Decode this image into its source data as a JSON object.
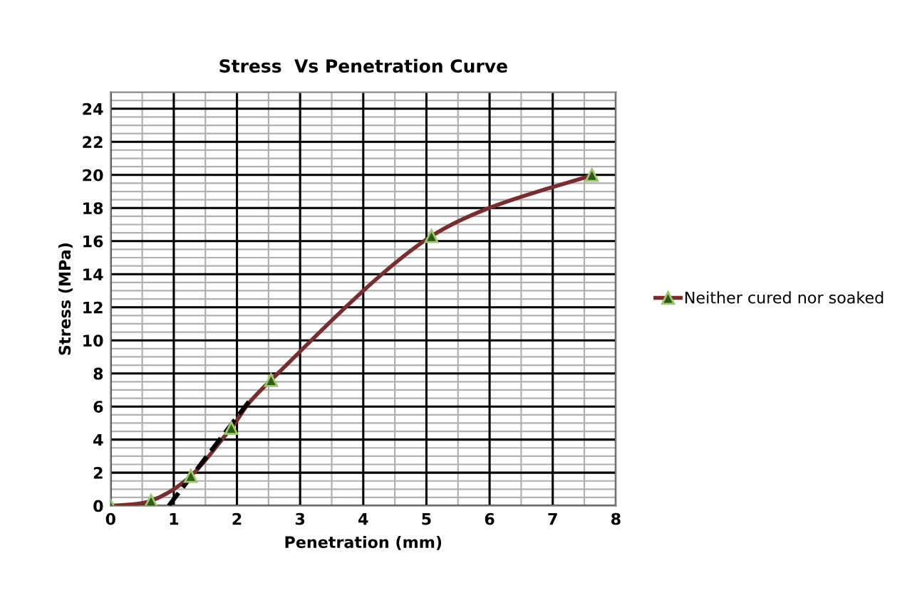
{
  "chart_data": {
    "type": "line",
    "title": "Stress  Vs Penetration Curve",
    "xlabel": "Penetration (mm)",
    "ylabel": "Stress (MPa)",
    "series": [
      {
        "name": "Neither cured nor soaked",
        "color": "#7b2c2c",
        "x": [
          0,
          0.64,
          1.27,
          1.91,
          2.54,
          5.08,
          7.62
        ],
        "values": [
          0,
          0.3,
          1.8,
          4.7,
          7.6,
          16.3,
          20
        ],
        "marker": "triangle"
      },
      {
        "type": "line",
        "color": "#000000",
        "x": [
          0.92,
          2.25
        ],
        "values": [
          0,
          6.6
        ],
        "line_style": "dashed",
        "marker": "none"
      }
    ],
    "xlim": [
      0,
      8
    ],
    "xticks": [
      0,
      1,
      2,
      3,
      4,
      5,
      6,
      7,
      8
    ],
    "ylim": [
      0,
      25
    ],
    "yticks": [
      0,
      2,
      4,
      6,
      8,
      10,
      12,
      14,
      16,
      18,
      20,
      22,
      24
    ],
    "grid": true,
    "legend": "right"
  }
}
